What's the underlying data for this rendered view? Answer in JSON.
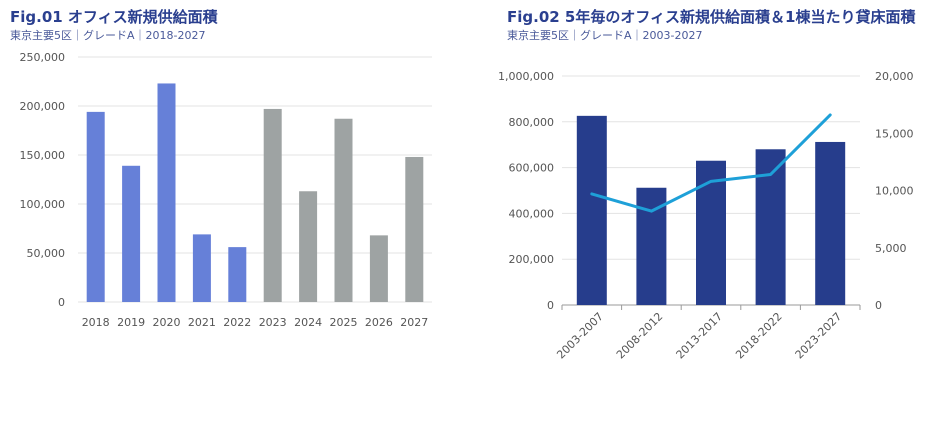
{
  "chart_data": [
    {
      "type": "bar",
      "title": "Fig.01 オフィス新規供給面積",
      "subtitle": "東京主要5区｜グレードA｜2018-2027",
      "categories": [
        "2018",
        "2019",
        "2020",
        "2021",
        "2022",
        "2023",
        "2024",
        "2025",
        "2026",
        "2027"
      ],
      "values": [
        194000,
        139000,
        223000,
        69000,
        56000,
        197000,
        113000,
        187000,
        68000,
        148000
      ],
      "colors": [
        "#6680d8",
        "#6680d8",
        "#6680d8",
        "#6680d8",
        "#6680d8",
        "#9ea3a3",
        "#9ea3a3",
        "#9ea3a3",
        "#9ea3a3",
        "#9ea3a3"
      ],
      "ylim": [
        0,
        250000
      ],
      "yticks": [
        "0",
        "50,000",
        "100,000",
        "150,000",
        "200,000",
        "250,000"
      ],
      "ytick_values": [
        0,
        50000,
        100000,
        150000,
        200000,
        250000
      ],
      "grid": true
    },
    {
      "type": "bar+line",
      "title": "Fig.02 5年毎のオフィス新規供給面積＆1棟当たり貸床面積",
      "subtitle": "東京主要5区｜グレードA｜2003-2027",
      "categories": [
        "2003-2007",
        "2008-2012",
        "2013-2017",
        "2018-2022",
        "2023-2027"
      ],
      "series": [
        {
          "type": "bar",
          "axis": "left",
          "color": "#263d8c",
          "values": [
            826000,
            512000,
            630000,
            680000,
            712000
          ]
        },
        {
          "type": "line",
          "axis": "right",
          "color": "#1ea0d8",
          "values": [
            9700,
            8200,
            10800,
            11400,
            16600
          ]
        }
      ],
      "ylim_left": [
        0,
        1000000
      ],
      "ylim_right": [
        0,
        20000
      ],
      "yticks_left": [
        "0",
        "200,000",
        "400,000",
        "600,000",
        "800,000",
        "1,000,000"
      ],
      "ytick_values_left": [
        0,
        200000,
        400000,
        600000,
        800000,
        1000000
      ],
      "yticks_right": [
        "0",
        "5,000",
        "10,000",
        "15,000",
        "20,000"
      ],
      "ytick_values_right": [
        0,
        5000,
        10000,
        15000,
        20000
      ],
      "grid": true
    }
  ]
}
